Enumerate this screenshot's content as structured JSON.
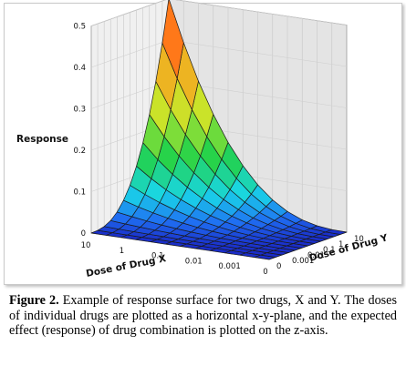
{
  "chart_data": {
    "type": "surface",
    "zlabel": "Response",
    "xlabel": "Dose of Drug X",
    "ylabel": "Dose of Drug Y",
    "z_ticks": [
      "0",
      "0.1",
      "0.2",
      "0.3",
      "0.4",
      "0.5"
    ],
    "zlim": [
      0,
      0.5
    ],
    "x_ticks": [
      "10",
      "1",
      "0.1",
      "0.01",
      "0.001",
      "0"
    ],
    "y_ticks": [
      "0",
      "0.001",
      "0.01",
      "0.1",
      "1",
      "10"
    ],
    "surface": {
      "grid_size": 12,
      "z_max": 0.5,
      "z_corner_both_zero": 0,
      "shape": "response rises with both doses, maximal when Drug X = 10 and Drug Y = 10"
    },
    "colormap": [
      "#1a2cc8",
      "#1f6ff2",
      "#19d6e8",
      "#22d24b",
      "#c8e62a",
      "#ff9a1e",
      "#ff2e0e"
    ]
  },
  "caption": {
    "label": "Figure 2.",
    "text": " Example of response surface for two drugs, X and Y. The doses of individual drugs are plotted as a horizontal x-y-plane, and the expected effect (response) of drug combination is plotted on the z-axis."
  }
}
